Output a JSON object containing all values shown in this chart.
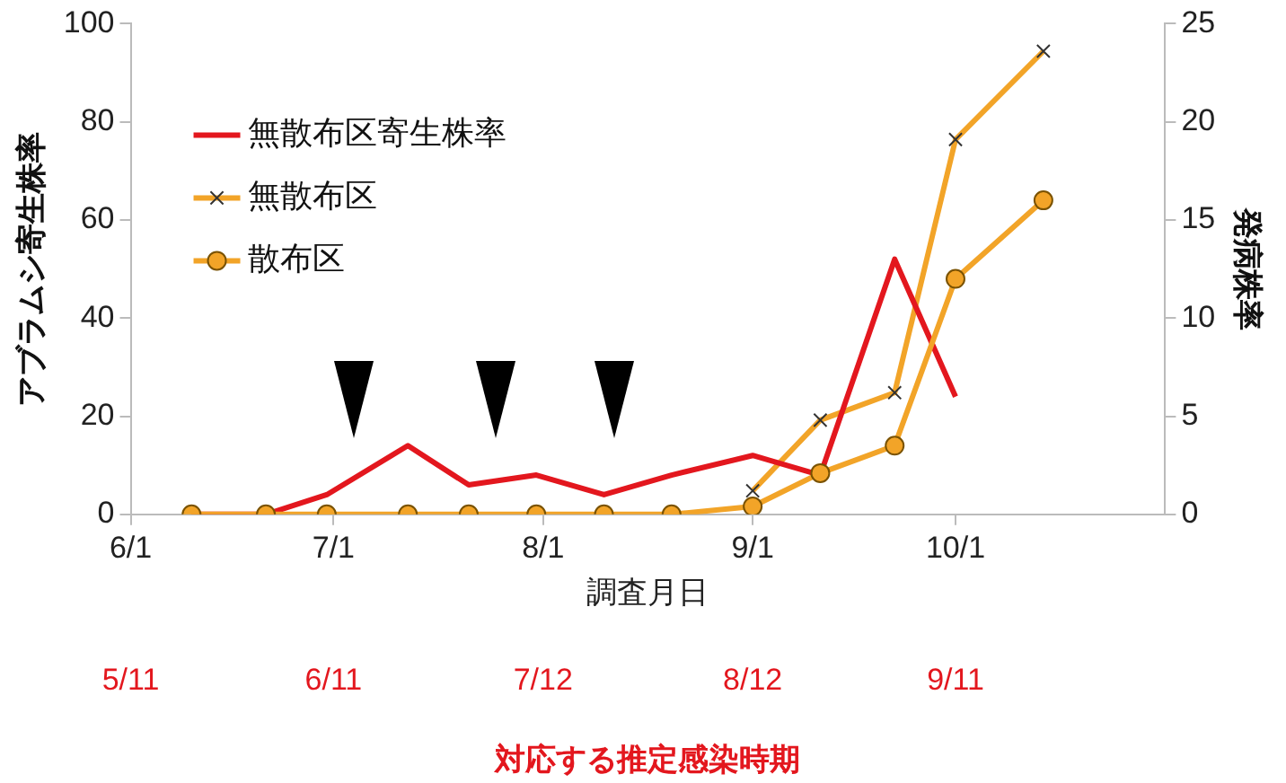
{
  "chart_data": {
    "type": "line",
    "ylabel": "アブラムシ寄生株率",
    "y2label": "発病株率",
    "xlabel": "調査月日",
    "x2label": "対応する推定感染時期",
    "x": [
      "--06-10",
      "--06-21",
      "--06-30",
      "--07-12",
      "--07-21",
      "--07-31",
      "--08-10",
      "--08-20",
      "--09-01",
      "--09-11",
      "--09-22",
      "--10-01",
      "--10-14"
    ],
    "series": [
      {
        "name": "無散布区寄生株率",
        "color": "#e3171e",
        "marker": "none",
        "values": [
          0,
          0,
          4,
          14,
          6,
          8,
          4,
          8,
          12,
          8,
          52,
          24,
          null
        ]
      },
      {
        "name": "無散布区",
        "color": "#f2a428",
        "marker": "cross",
        "axis": "y2",
        "values": [
          null,
          null,
          null,
          null,
          null,
          null,
          null,
          null,
          1.2,
          4.8,
          6.2,
          19.1,
          23.6
        ]
      },
      {
        "name": "散布区",
        "color": "#f2a428",
        "marker": "circle",
        "axis": "y2",
        "values": [
          0,
          0,
          0,
          0,
          0,
          0,
          0,
          0,
          0.4,
          2.1,
          3.5,
          12,
          16
        ]
      }
    ],
    "xlim": [
      "--06-01",
      "--11-01"
    ],
    "xticks": [
      {
        "value": "--06-01",
        "label": "6/1"
      },
      {
        "value": "--07-01",
        "label": "7/1"
      },
      {
        "value": "--08-01",
        "label": "8/1"
      },
      {
        "value": "--09-01",
        "label": "9/1"
      },
      {
        "value": "--10-01",
        "label": "10/1"
      }
    ],
    "x2lim": [
      "--06-01",
      "--11-01"
    ],
    "x2ticks": [
      {
        "value": "--06-01",
        "label": "5/11"
      },
      {
        "value": "--07-01",
        "label": "6/11"
      },
      {
        "value": "--08-01",
        "label": "7/12"
      },
      {
        "value": "--09-01",
        "label": "8/12"
      },
      {
        "value": "--10-01",
        "label": "9/11"
      }
    ],
    "ylim": [
      0,
      100
    ],
    "yticks": [
      0,
      20,
      40,
      60,
      80,
      100
    ],
    "y2lim": [
      0,
      25
    ],
    "y2ticks": [
      0,
      5,
      10,
      15,
      20,
      25
    ],
    "grid": false,
    "legend": "top left",
    "line_style": "solid"
  }
}
